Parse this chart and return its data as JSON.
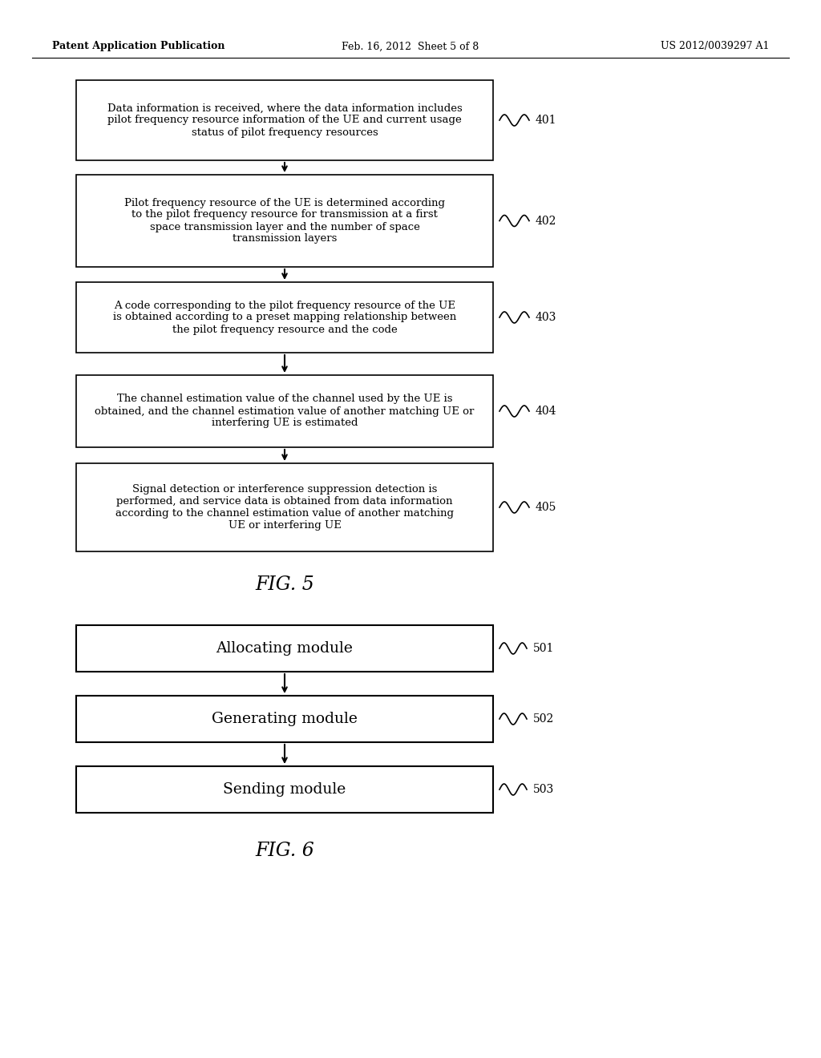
{
  "bg_color": "#ffffff",
  "header_left": "Patent Application Publication",
  "header_mid": "Feb. 16, 2012  Sheet 5 of 8",
  "header_right": "US 2012/0039297 A1",
  "fig5_boxes": [
    {
      "label": "Data information is received, where the data information includes\npilot frequency resource information of the UE and current usage\nstatus of pilot frequency resources",
      "ref": "401"
    },
    {
      "label": "Pilot frequency resource of the UE is determined according\nto the pilot frequency resource for transmission at a first\nspace transmission layer and the number of space\ntransmission layers",
      "ref": "402"
    },
    {
      "label": "A code corresponding to the pilot frequency resource of the UE\nis obtained according to a preset mapping relationship between\nthe pilot frequency resource and the code",
      "ref": "403"
    },
    {
      "label": "The channel estimation value of the channel used by the UE is\nobtained, and the channel estimation value of another matching UE or\ninterfering UE is estimated",
      "ref": "404"
    },
    {
      "label": "Signal detection or interference suppression detection is\nperformed, and service data is obtained from data information\naccording to the channel estimation value of another matching\nUE or interfering UE",
      "ref": "405"
    }
  ],
  "fig5_caption": "FIG. 5",
  "fig6_boxes": [
    {
      "label": "Allocating module",
      "ref": "501"
    },
    {
      "label": "Generating module",
      "ref": "502"
    },
    {
      "label": "Sending module",
      "ref": "503"
    }
  ],
  "fig6_caption": "FIG. 6",
  "box_color": "#ffffff",
  "box_edge_color": "#000000",
  "arrow_color": "#000000"
}
